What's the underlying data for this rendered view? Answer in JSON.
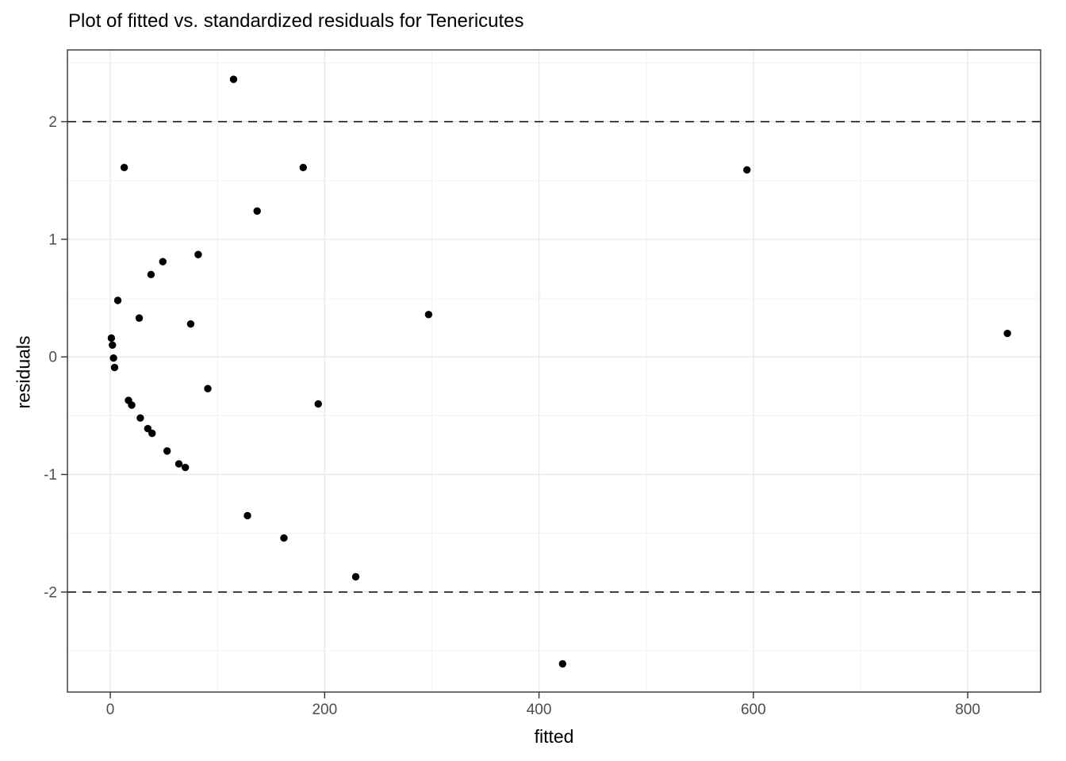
{
  "chart_data": {
    "type": "scatter",
    "title": "Plot of fitted vs. standardized residuals for Tenericutes",
    "xlabel": "fitted",
    "ylabel": "residuals",
    "xlim": [
      -40,
      868
    ],
    "ylim": [
      -2.85,
      2.61
    ],
    "x_major_ticks": [
      0,
      200,
      400,
      600,
      800
    ],
    "x_minor_gridlines": [
      100,
      300,
      500,
      700
    ],
    "y_major_ticks": [
      2,
      1,
      0,
      -1,
      -2
    ],
    "y_minor_gridlines": [
      2.5,
      1.5,
      0.5,
      -0.5,
      -1.5,
      -2.5
    ],
    "reference_lines": {
      "values": [
        2,
        -2
      ],
      "style": "dashed"
    },
    "grid": "on",
    "legend": "none",
    "points": [
      [
        115,
        2.36
      ],
      [
        13,
        1.61
      ],
      [
        180,
        1.61
      ],
      [
        594,
        1.59
      ],
      [
        137,
        1.24
      ],
      [
        82,
        0.87
      ],
      [
        49,
        0.81
      ],
      [
        38,
        0.7
      ],
      [
        7,
        0.48
      ],
      [
        297,
        0.36
      ],
      [
        27,
        0.33
      ],
      [
        75,
        0.28
      ],
      [
        837,
        0.2
      ],
      [
        1,
        0.16
      ],
      [
        2,
        0.1
      ],
      [
        3,
        -0.01
      ],
      [
        4,
        -0.09
      ],
      [
        91,
        -0.27
      ],
      [
        17,
        -0.37
      ],
      [
        20,
        -0.41
      ],
      [
        194,
        -0.4
      ],
      [
        28,
        -0.52
      ],
      [
        35,
        -0.61
      ],
      [
        39,
        -0.65
      ],
      [
        53,
        -0.8
      ],
      [
        64,
        -0.91
      ],
      [
        70,
        -0.94
      ],
      [
        128,
        -1.35
      ],
      [
        162,
        -1.54
      ],
      [
        229,
        -1.87
      ],
      [
        422,
        -2.61
      ]
    ],
    "colors": {
      "point": "#000000",
      "reference_line": "#000000",
      "grid_major": "#e8e8e8",
      "grid_minor": "#f1f1f1",
      "panel_border": "#333333",
      "tick": "#333333",
      "tick_label": "#4d4d4d",
      "background": "#ffffff"
    }
  }
}
